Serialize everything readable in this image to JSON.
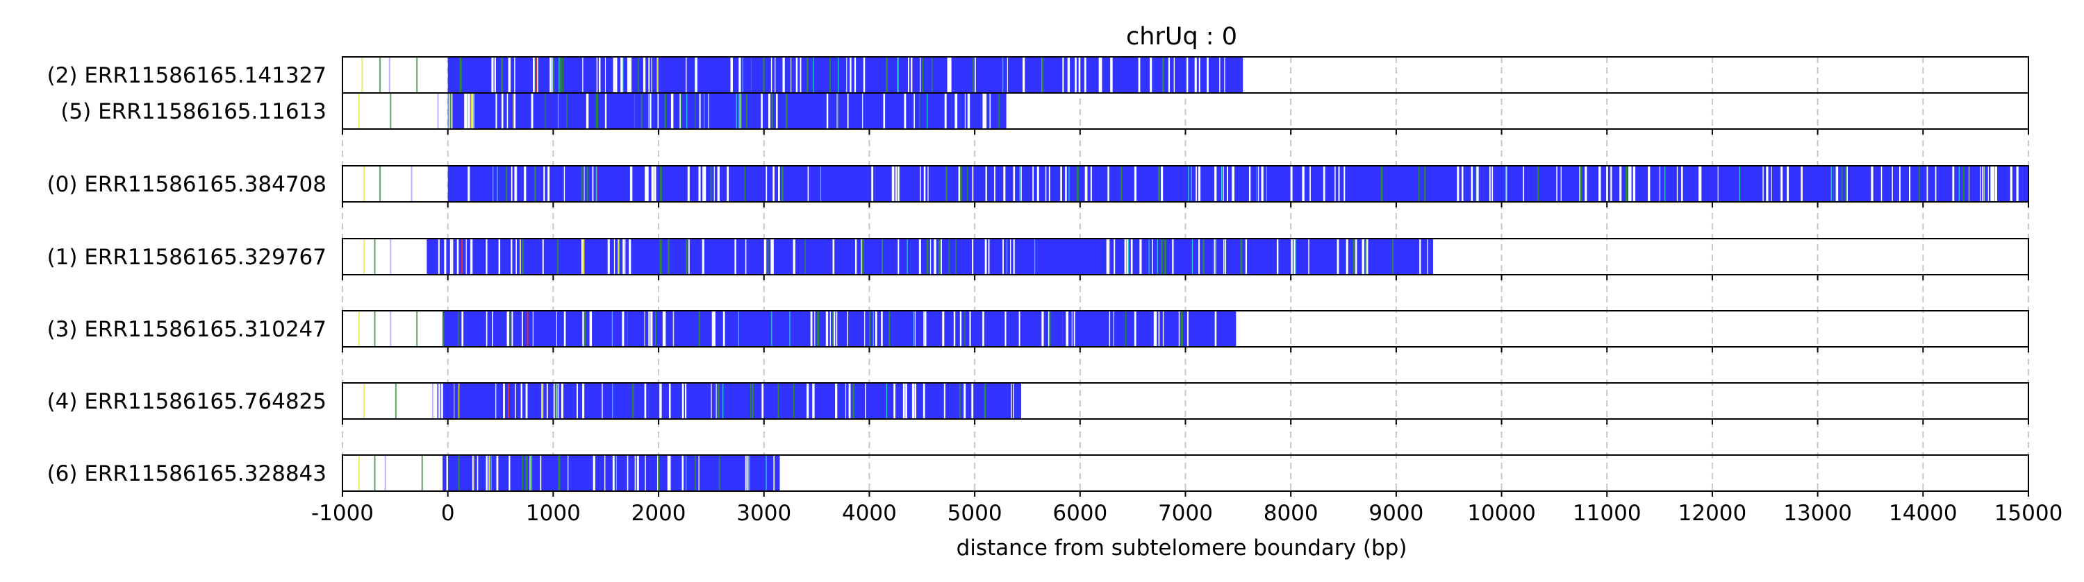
{
  "chart_data": {
    "type": "bar",
    "title": "chrUq : 0",
    "xlabel": "distance from subtelomere boundary (bp)",
    "ylabel": "",
    "xlim": [
      -1000,
      15000
    ],
    "xticks": [
      -1000,
      0,
      1000,
      2000,
      3000,
      4000,
      5000,
      6000,
      7000,
      8000,
      9000,
      10000,
      11000,
      12000,
      13000,
      14000,
      15000
    ],
    "xtick_labels": [
      "-1000",
      "0",
      "1000",
      "2000",
      "3000",
      "4000",
      "5000",
      "6000",
      "7000",
      "8000",
      "9000",
      "10000",
      "11000",
      "12000",
      "13000",
      "14000",
      "15000"
    ],
    "grid": "vertical dashed at major ticks",
    "colors": {
      "telomere_repeat": "#3333ff",
      "variant_green": "#2e8b2e",
      "variant_yellow": "#e8e23a",
      "variant_cyan": "#30d0d0",
      "variant_red": "#e03030",
      "gap": "#ffffff",
      "grid": "#c8c8c8"
    },
    "groups": [
      {
        "reads": [
          {
            "label": "(2) ERR11586165.141327",
            "start": 0,
            "end": 7560,
            "outer_marks": [
              -820,
              -650,
              -560,
              -300
            ]
          },
          {
            "label": "(5) ERR11586165.11613",
            "start": 0,
            "end": 5300,
            "outer_marks": [
              -850,
              -550,
              -100
            ]
          }
        ]
      },
      {
        "reads": [
          {
            "label": "(0) ERR11586165.384708",
            "start": 0,
            "end": 15000,
            "outer_marks": [
              -800,
              -650,
              -350
            ]
          }
        ]
      },
      {
        "reads": [
          {
            "label": "(1) ERR11586165.329767",
            "start": -200,
            "end": 9350,
            "outer_marks": [
              -800,
              -700,
              -550
            ]
          }
        ]
      },
      {
        "reads": [
          {
            "label": "(3) ERR11586165.310247",
            "start": -50,
            "end": 7480,
            "outer_marks": [
              -850,
              -700,
              -550,
              -300
            ]
          }
        ]
      },
      {
        "reads": [
          {
            "label": "(4) ERR11586165.764825",
            "start": -100,
            "end": 5450,
            "outer_marks": [
              -800,
              -500,
              -150
            ]
          }
        ]
      },
      {
        "reads": [
          {
            "label": "(6) ERR11586165.328843",
            "start": -50,
            "end": 3150,
            "outer_marks": [
              -850,
              -700,
              -600,
              -250
            ]
          }
        ]
      }
    ]
  }
}
